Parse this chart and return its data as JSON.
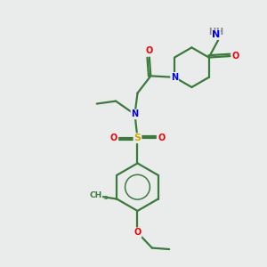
{
  "bg_color": "#eaecec",
  "bond_color": "#3a7a3a",
  "atom_colors": {
    "N": "#0000ee",
    "O": "#ee0000",
    "S": "#ccaa00",
    "C": "#3a7a3a",
    "H": "#888888"
  }
}
